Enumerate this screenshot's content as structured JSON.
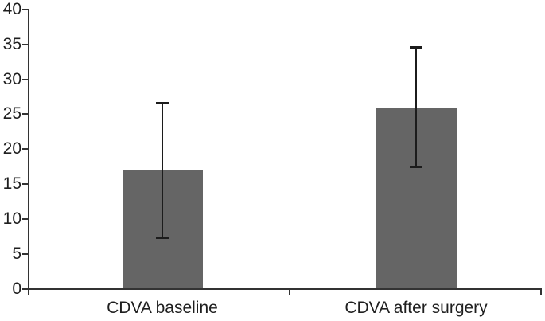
{
  "chart_data": {
    "type": "bar",
    "title": "",
    "xlabel": "",
    "ylabel": "",
    "categories": [
      "CDVA baseline",
      "CDVA after surgery"
    ],
    "values": [
      17,
      26
    ],
    "error_bars": {
      "type": "symmetric",
      "values": [
        9.7,
        8.6
      ]
    },
    "ylim": [
      0,
      40
    ],
    "ytick_interval": 5,
    "ytick_labels": [
      "0",
      "5",
      "10",
      "15",
      "20",
      "25",
      "30",
      "35",
      "40"
    ],
    "grid": false,
    "legend": null,
    "colors": {
      "bar_fill": "#656565",
      "error_bar": "#1c1c1c",
      "axis": "#333333",
      "text": "#1f1f1f",
      "background": "#ffffff"
    }
  }
}
